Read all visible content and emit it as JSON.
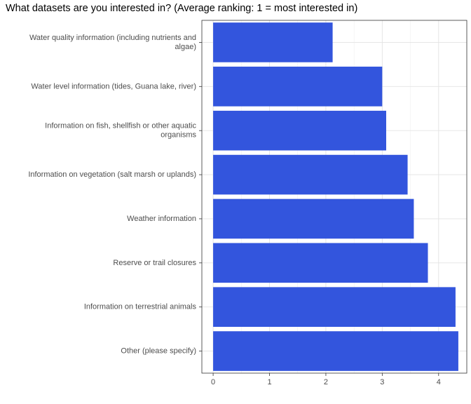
{
  "chart_data": {
    "type": "bar",
    "orientation": "horizontal",
    "title": "What datasets are you interested in? (Average ranking: 1 = most interested in)",
    "xlabel": "",
    "ylabel": "",
    "categories": [
      "Water quality information (including nutrients and algae)",
      "Water level information (tides, Guana lake, river)",
      "Information on fish, shellfish or other aquatic organisms",
      "Information on vegetation (salt marsh or uplands)",
      "Weather information",
      "Reserve or trail closures",
      "Information on terrestrial animals",
      "Other (please specify)"
    ],
    "category_lines": [
      [
        "Water quality information (including nutrients and",
        "algae)"
      ],
      [
        "Water level information (tides, Guana lake, river)"
      ],
      [
        "Information on fish, shellfish or other aquatic",
        "organisms"
      ],
      [
        "Information on vegetation (salt marsh or uplands)"
      ],
      [
        "Weather information"
      ],
      [
        "Reserve or trail closures"
      ],
      [
        "Information on terrestrial animals"
      ],
      [
        "Other (please specify)"
      ]
    ],
    "values": [
      2.12,
      3.0,
      3.07,
      3.45,
      3.56,
      3.81,
      4.3,
      4.35
    ],
    "xlim": [
      -0.2,
      4.5
    ],
    "xticks": [
      0,
      1,
      2,
      3,
      4
    ],
    "grid": true,
    "bar_color": "#3355DD",
    "theme": "bw"
  }
}
